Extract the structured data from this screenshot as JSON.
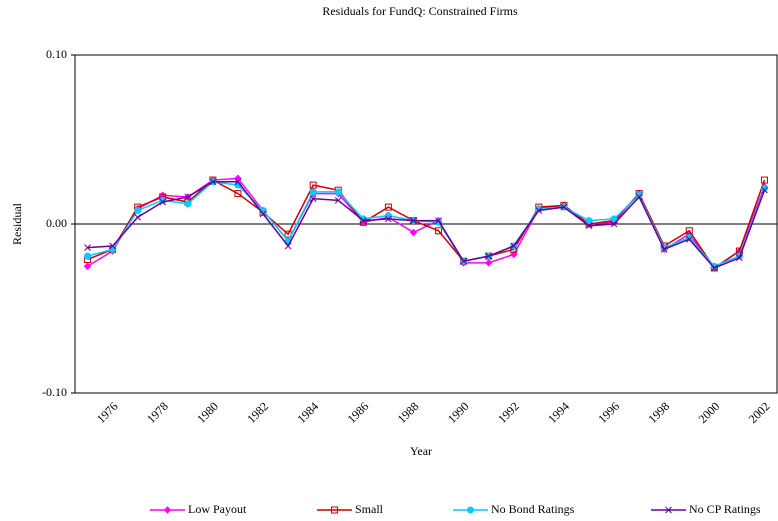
{
  "chart_data": {
    "type": "line",
    "title": "Residuals for FundQ: Constrained Firms",
    "x_label": "Year",
    "y_label": "Residual",
    "categories": [
      null,
      "1976",
      null,
      "1978",
      null,
      "1980",
      null,
      "1982",
      null,
      "1984",
      null,
      "1986",
      null,
      "1988",
      null,
      "1990",
      null,
      "1992",
      null,
      "1994",
      null,
      "1996",
      null,
      "1998",
      null,
      "2000",
      null,
      "2002"
    ],
    "ylim": [
      -0.1,
      0.1
    ],
    "yticks": [
      {
        "value": 0.1,
        "label": "0.10"
      },
      {
        "value": 0,
        "label": "0.00"
      },
      {
        "value": -0.1,
        "label": "-0.10"
      }
    ],
    "legend": "bottom",
    "series": [
      {
        "name": "Low Payout",
        "color": "#ff00ff",
        "marker": "diamond",
        "values": [
          -0.025,
          -0.016,
          0.009,
          0.017,
          0.016,
          0.026,
          0.027,
          0.008,
          -0.01,
          0.018,
          0.018,
          0.001,
          0.004,
          -0.005,
          0.002,
          -0.023,
          -0.023,
          -0.018,
          0.009,
          0.011,
          0.0,
          0.001,
          0.018,
          -0.015,
          -0.006,
          -0.026,
          -0.016,
          0.022
        ]
      },
      {
        "name": "Small",
        "color": "#cc0000",
        "marker": "square",
        "values": [
          -0.021,
          -0.015,
          0.01,
          0.016,
          0.013,
          0.026,
          0.018,
          0.007,
          -0.006,
          0.023,
          0.02,
          0.001,
          0.01,
          0.002,
          -0.004,
          -0.022,
          -0.019,
          -0.015,
          0.01,
          0.011,
          0.0,
          0.002,
          0.018,
          -0.013,
          -0.004,
          -0.026,
          -0.016,
          0.026
        ]
      },
      {
        "name": "No Bond Ratings",
        "color": "#00ccff",
        "marker": "circle",
        "values": [
          -0.019,
          -0.015,
          0.008,
          0.014,
          0.012,
          0.025,
          0.023,
          0.008,
          -0.01,
          0.019,
          0.019,
          0.003,
          0.005,
          0.002,
          0.001,
          -0.022,
          -0.019,
          -0.013,
          0.009,
          0.01,
          0.002,
          0.003,
          0.017,
          -0.014,
          -0.008,
          -0.025,
          -0.019,
          0.021
        ]
      },
      {
        "name": "No CP Ratings",
        "color": "#660099",
        "marker": "x",
        "values": [
          -0.014,
          -0.013,
          0.004,
          0.013,
          0.016,
          0.025,
          0.025,
          0.006,
          -0.013,
          0.015,
          0.014,
          0.002,
          0.003,
          0.002,
          0.002,
          -0.022,
          -0.019,
          -0.013,
          0.008,
          0.01,
          -0.001,
          0.0,
          0.016,
          -0.015,
          -0.009,
          -0.026,
          -0.02,
          0.02
        ]
      }
    ]
  }
}
